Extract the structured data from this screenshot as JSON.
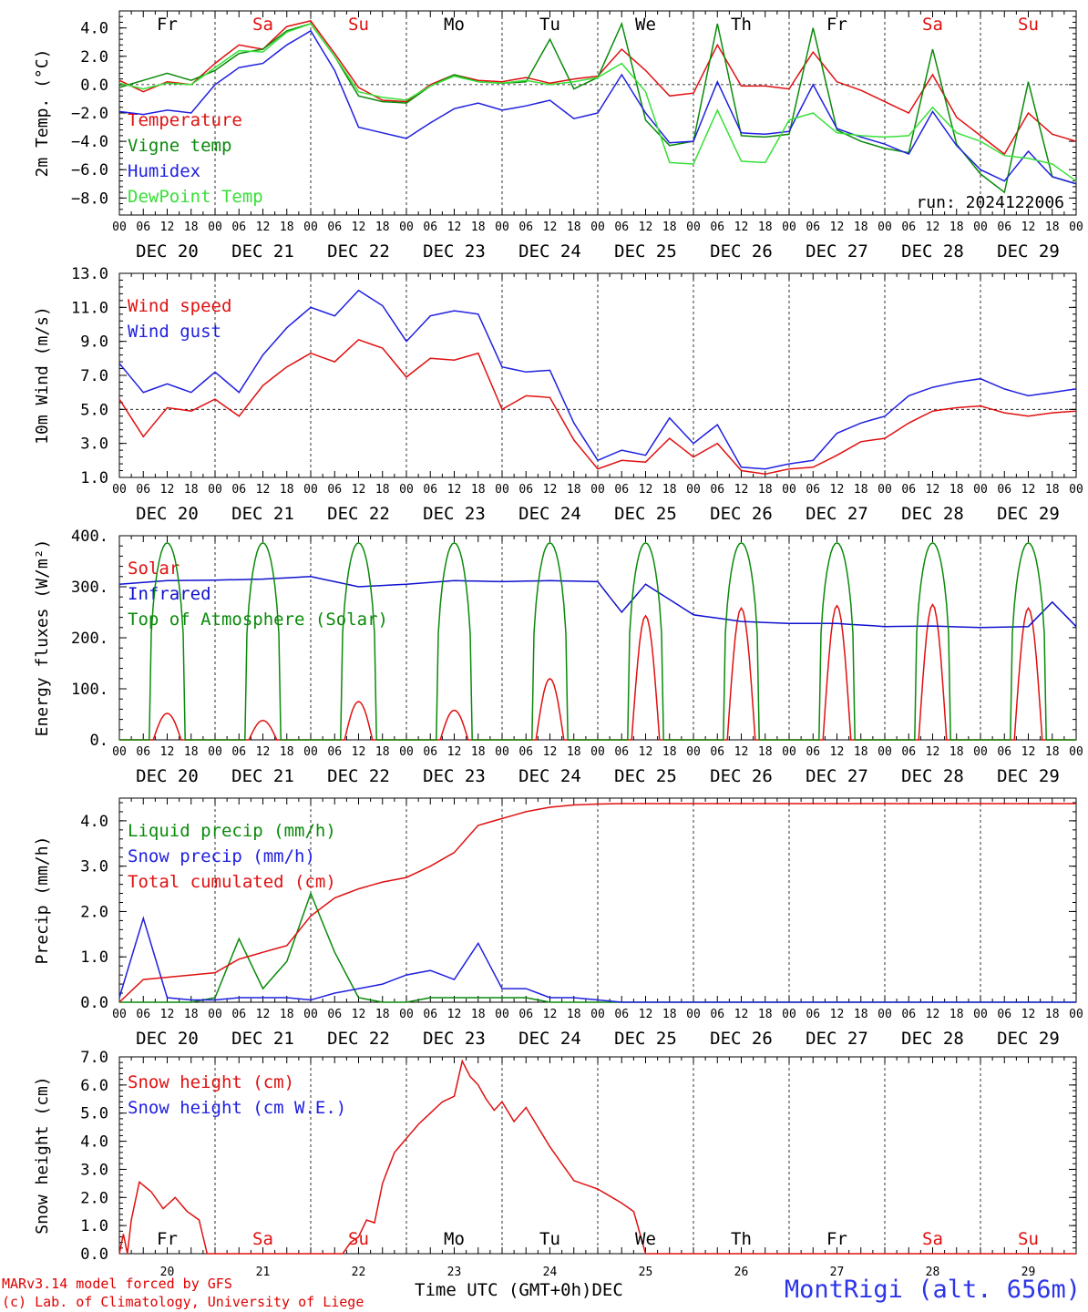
{
  "chart_data": [
    {
      "type": "line",
      "ylabel": "2m Temp. (°C)",
      "ylim": [
        -9.2,
        5.2
      ],
      "yticks": [
        4.0,
        2.0,
        0.0,
        -2.0,
        -4.0,
        -6.0,
        -8.0
      ],
      "ytick_labels": [
        "4.0",
        "2.0",
        "0.0",
        "−2.0",
        "−4.0",
        "−6.0",
        "−8.0"
      ],
      "ref_line": 0,
      "annotation": "run: 2024122006",
      "x_hours": [
        0,
        6,
        12,
        18,
        24,
        30,
        36,
        42,
        48,
        54,
        60,
        66,
        72,
        78,
        84,
        90,
        96,
        102,
        108,
        114,
        120,
        126,
        132,
        138,
        144,
        150,
        156,
        162,
        168,
        174,
        180,
        186,
        192,
        198,
        204,
        210,
        216,
        222,
        228,
        234,
        240
      ],
      "series": [
        {
          "name": "Temperature",
          "color": "#e01010",
          "values": [
            0.3,
            -0.5,
            0.2,
            0.0,
            1.5,
            2.8,
            2.5,
            4.1,
            4.5,
            2.2,
            -0.2,
            -1.1,
            -1.2,
            0.0,
            0.7,
            0.3,
            0.2,
            0.5,
            0.1,
            0.4,
            0.6,
            2.5,
            1.0,
            -0.8,
            -0.6,
            2.8,
            -0.1,
            -0.1,
            -0.3,
            2.3,
            0.2,
            -0.4,
            -1.2,
            -2.0,
            0.7,
            -2.3,
            -3.6,
            -4.9,
            -2.0,
            -3.5,
            -4.0
          ]
        },
        {
          "name": "Vigne temp",
          "color": "#0a8a0a",
          "values": [
            -0.2,
            0.3,
            0.8,
            0.3,
            1.0,
            2.2,
            2.5,
            3.8,
            4.3,
            2.0,
            -0.8,
            -1.2,
            -1.3,
            -0.1,
            0.7,
            0.2,
            0.1,
            0.2,
            3.2,
            -0.3,
            0.5,
            4.3,
            -2.5,
            -4.3,
            -4.0,
            4.3,
            -3.6,
            -3.7,
            -3.5,
            4.0,
            -3.2,
            -4.0,
            -4.5,
            -4.8,
            2.5,
            -4.2,
            -6.3,
            -7.6,
            0.2,
            -6.5,
            -7.0
          ]
        },
        {
          "name": "Humidex",
          "color": "#2020e0",
          "values": [
            -1.9,
            -2.1,
            -1.8,
            -2.0,
            0.0,
            1.2,
            1.5,
            2.8,
            3.8,
            1.0,
            -3.0,
            -3.4,
            -3.8,
            -2.7,
            -1.7,
            -1.3,
            -1.8,
            -1.5,
            -1.1,
            -2.4,
            -2.0,
            0.7,
            -2.0,
            -4.1,
            -4.0,
            0.2,
            -3.4,
            -3.5,
            -3.3,
            0.0,
            -3.1,
            -3.7,
            -4.2,
            -4.9,
            -1.9,
            -4.3,
            -6.0,
            -6.8,
            -4.7,
            -6.5,
            -7.0
          ]
        },
        {
          "name": "DewPoint Temp",
          "color": "#38e038",
          "values": [
            0.1,
            -0.3,
            0.1,
            0.0,
            1.2,
            2.4,
            2.3,
            3.7,
            4.3,
            2.0,
            -0.5,
            -0.9,
            -1.1,
            -0.1,
            0.6,
            0.2,
            0.1,
            0.3,
            0.0,
            0.2,
            0.5,
            1.5,
            -0.5,
            -5.5,
            -5.6,
            -1.8,
            -5.4,
            -5.5,
            -2.5,
            -2.0,
            -3.4,
            -3.6,
            -3.7,
            -3.6,
            -1.6,
            -3.4,
            -4.0,
            -5.0,
            -5.2,
            -5.6,
            -6.8
          ]
        }
      ]
    },
    {
      "type": "line",
      "ylabel": "10m Wind (m/s)",
      "ylim": [
        1.0,
        13.0
      ],
      "yticks": [
        13.0,
        11.0,
        9.0,
        7.0,
        5.0,
        3.0,
        1.0
      ],
      "ytick_labels": [
        "13.0",
        "11.0",
        "9.0",
        "7.0",
        "5.0",
        "3.0",
        "1.0"
      ],
      "ref_line": 5.0,
      "x_hours": [
        0,
        6,
        12,
        18,
        24,
        30,
        36,
        42,
        48,
        54,
        60,
        66,
        72,
        78,
        84,
        90,
        96,
        102,
        108,
        114,
        120,
        126,
        132,
        138,
        144,
        150,
        156,
        162,
        168,
        174,
        180,
        186,
        192,
        198,
        204,
        210,
        216,
        222,
        228,
        234,
        240
      ],
      "series": [
        {
          "name": "Wind speed",
          "color": "#e01010",
          "values": [
            5.6,
            3.4,
            5.1,
            4.9,
            5.6,
            4.6,
            6.4,
            7.5,
            8.3,
            7.8,
            9.1,
            8.6,
            6.9,
            8.0,
            7.9,
            8.3,
            5.0,
            5.8,
            5.7,
            3.2,
            1.5,
            2.0,
            1.9,
            3.3,
            2.2,
            3.0,
            1.4,
            1.2,
            1.5,
            1.6,
            2.3,
            3.1,
            3.3,
            4.2,
            4.9,
            5.1,
            5.2,
            4.8,
            4.6,
            4.8,
            4.9
          ]
        },
        {
          "name": "Wind gust",
          "color": "#2020e0",
          "values": [
            7.7,
            6.0,
            6.5,
            6.0,
            7.2,
            6.0,
            8.2,
            9.8,
            11.0,
            10.5,
            12.0,
            11.1,
            9.0,
            10.5,
            10.8,
            10.6,
            7.5,
            7.2,
            7.3,
            4.2,
            2.0,
            2.6,
            2.3,
            4.5,
            3.0,
            4.1,
            1.6,
            1.5,
            1.8,
            2.0,
            3.6,
            4.2,
            4.6,
            5.8,
            6.3,
            6.6,
            6.8,
            6.2,
            5.8,
            6.0,
            6.2
          ]
        }
      ]
    },
    {
      "type": "line",
      "ylabel": "Energy fluxes (W/m²)",
      "ylim": [
        0,
        400
      ],
      "yticks": [
        400,
        300,
        200,
        100,
        0
      ],
      "ytick_labels": [
        "400.",
        "300.",
        "200.",
        "100.",
        "0."
      ],
      "series": [
        {
          "name": "Solar",
          "color": "#e01010",
          "daily_peaks": [
            52,
            38,
            75,
            58,
            120,
            243,
            258,
            263,
            265,
            258
          ]
        },
        {
          "name": "Infrared",
          "color": "#1010d0",
          "x_hours": [
            0,
            12,
            24,
            36,
            48,
            60,
            72,
            84,
            96,
            108,
            120,
            126,
            132,
            144,
            156,
            168,
            180,
            192,
            204,
            216,
            228,
            234,
            240
          ],
          "values": [
            305,
            312,
            313,
            315,
            320,
            300,
            305,
            312,
            310,
            312,
            310,
            250,
            305,
            245,
            232,
            228,
            228,
            222,
            223,
            220,
            222,
            270,
            222
          ]
        },
        {
          "name": "Top of Atmosphere (Solar)",
          "color": "#0a8a0a",
          "daily_peaks": [
            386,
            386,
            386,
            386,
            386,
            386,
            386,
            386,
            386,
            386
          ]
        }
      ]
    },
    {
      "type": "line",
      "ylabel": "Precip (mm/h)",
      "ylim": [
        0,
        4.5
      ],
      "yticks": [
        4.0,
        3.0,
        2.0,
        1.0,
        0.0
      ],
      "ytick_labels": [
        "4.0",
        "3.0",
        "2.0",
        "1.0",
        "0.0"
      ],
      "x_hours": [
        0,
        6,
        12,
        18,
        24,
        30,
        36,
        42,
        48,
        54,
        60,
        66,
        72,
        78,
        84,
        90,
        96,
        102,
        108,
        114,
        120,
        126,
        132,
        138,
        144,
        150,
        156,
        162,
        168,
        174,
        180,
        186,
        192,
        198,
        204,
        210,
        216,
        222,
        228,
        234,
        240
      ],
      "series": [
        {
          "name": "Liquid precip (mm/h)",
          "color": "#0a8a0a",
          "values": [
            0,
            0,
            0,
            0,
            0.1,
            1.4,
            0.3,
            0.9,
            2.4,
            1.1,
            0.1,
            0,
            0,
            0.1,
            0.1,
            0.1,
            0.1,
            0.1,
            0,
            0,
            0,
            0,
            0,
            0,
            0,
            0,
            0,
            0,
            0,
            0,
            0,
            0,
            0,
            0,
            0,
            0,
            0,
            0,
            0,
            0,
            0
          ]
        },
        {
          "name": "Snow precip (mm/h)",
          "color": "#2020e0",
          "values": [
            0.1,
            1.85,
            0.1,
            0.05,
            0.05,
            0.1,
            0.1,
            0.1,
            0.05,
            0.2,
            0.3,
            0.4,
            0.6,
            0.7,
            0.5,
            1.3,
            0.3,
            0.3,
            0.1,
            0.1,
            0.05,
            0,
            0,
            0,
            0,
            0,
            0,
            0,
            0,
            0,
            0,
            0,
            0,
            0,
            0,
            0,
            0,
            0,
            0,
            0,
            0
          ]
        },
        {
          "name": "Total cumulated (cm)",
          "color": "#e01010",
          "values": [
            0,
            0.5,
            0.55,
            0.6,
            0.65,
            0.95,
            1.1,
            1.25,
            1.9,
            2.3,
            2.5,
            2.65,
            2.75,
            3.0,
            3.3,
            3.9,
            4.05,
            4.2,
            4.3,
            4.35,
            4.37,
            4.38,
            4.38,
            4.38,
            4.38,
            4.38,
            4.38,
            4.38,
            4.38,
            4.38,
            4.38,
            4.38,
            4.38,
            4.38,
            4.38,
            4.38,
            4.38,
            4.38,
            4.38,
            4.38,
            4.38
          ]
        }
      ]
    },
    {
      "type": "line",
      "ylabel": "Snow height (cm)",
      "ylim": [
        0,
        7.0
      ],
      "yticks": [
        7.0,
        6.0,
        5.0,
        4.0,
        3.0,
        2.0,
        1.0,
        0.0
      ],
      "ytick_labels": [
        "7.0",
        "6.0",
        "5.0",
        "4.0",
        "3.0",
        "2.0",
        "1.0",
        "0.0"
      ],
      "x_hours": [
        0,
        1,
        2,
        3,
        5,
        8,
        11,
        14,
        17,
        20,
        22,
        24,
        36,
        48,
        54,
        56,
        58,
        60,
        62,
        64,
        66,
        69,
        72,
        75,
        78,
        81,
        84,
        86,
        88,
        90,
        92,
        94,
        96,
        99,
        102,
        105,
        108,
        114,
        120,
        126,
        129,
        132,
        240
      ],
      "series": [
        {
          "name": "Snow height (cm)",
          "color": "#e01010",
          "values": [
            0,
            0.7,
            0,
            1.2,
            2.55,
            2.2,
            1.6,
            2.0,
            1.5,
            1.2,
            0,
            0,
            0,
            0,
            0,
            0,
            0.4,
            0.6,
            1.2,
            1.1,
            2.5,
            3.6,
            4.1,
            4.6,
            5.0,
            5.4,
            5.6,
            6.85,
            6.3,
            6.0,
            5.5,
            5.1,
            5.4,
            4.7,
            5.2,
            4.5,
            3.8,
            2.6,
            2.3,
            1.8,
            1.5,
            0,
            0
          ]
        },
        {
          "name": "Snow height (cm W.E.)",
          "color": "#2020e0",
          "values": []
        }
      ]
    }
  ],
  "x_axis": {
    "hour_labels": [
      "00",
      "06",
      "12",
      "18"
    ],
    "date_labels": [
      "DEC 20",
      "DEC 21",
      "DEC 22",
      "DEC 23",
      "DEC 24",
      "DEC 25",
      "DEC 26",
      "DEC 27",
      "DEC 28",
      "DEC 29"
    ],
    "day_numbers": [
      "20",
      "21",
      "22",
      "23",
      "24",
      "25",
      "26",
      "27",
      "28",
      "29"
    ],
    "month": "DEC",
    "time_label": "Time UTC (GMT+0h)"
  },
  "weekdays": [
    {
      "label": "Fr",
      "color": "#000000"
    },
    {
      "label": "Sa",
      "color": "#e01010"
    },
    {
      "label": "Su",
      "color": "#e01010"
    },
    {
      "label": "Mo",
      "color": "#000000"
    },
    {
      "label": "Tu",
      "color": "#000000"
    },
    {
      "label": "We",
      "color": "#000000"
    },
    {
      "label": "Th",
      "color": "#000000"
    },
    {
      "label": "Fr",
      "color": "#000000"
    },
    {
      "label": "Sa",
      "color": "#e01010"
    },
    {
      "label": "Su",
      "color": "#e01010"
    }
  ],
  "footer": {
    "model_note": "MARv3.14 model forced by GFS",
    "copyright": "(c) Lab. of Climatology, University of Liege",
    "station": "MontRigi (alt. 656m)"
  }
}
